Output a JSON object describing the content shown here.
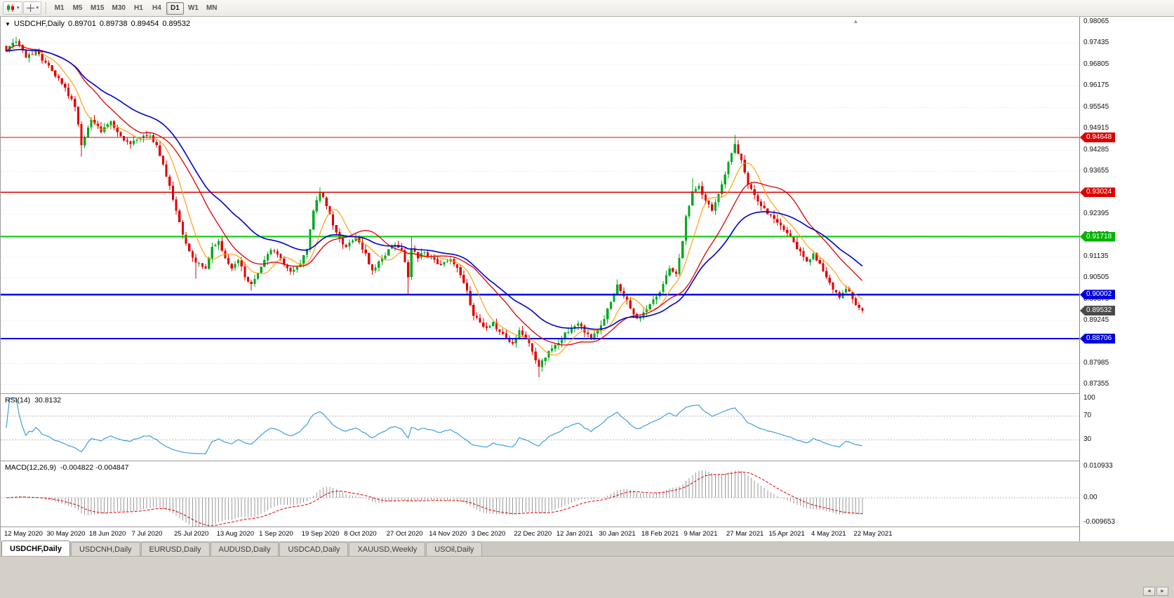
{
  "icons": {
    "caret": "▾",
    "symbol_caret": "▼",
    "shift_marker": "▲"
  },
  "toolbar": {
    "timeframes": [
      "M1",
      "M5",
      "M15",
      "M30",
      "H1",
      "H4",
      "D1",
      "W1",
      "MN"
    ],
    "active_timeframe": "D1"
  },
  "chart": {
    "header": {
      "symbol": "USDCHF,Daily",
      "open": "0.89701",
      "high": "0.89738",
      "low": "0.89454",
      "close": "0.89532"
    },
    "price_axis": {
      "ticks": [
        "0.98065",
        "0.97435",
        "0.96805",
        "0.96175",
        "0.95545",
        "0.94915",
        "0.94285",
        "0.93655",
        "0.93025",
        "0.92395",
        "0.91765",
        "0.91135",
        "0.90505",
        "0.89875",
        "0.89245",
        "0.88615",
        "0.87985",
        "0.87355"
      ],
      "badges": [
        {
          "text": "0.94648",
          "color": "#dd0000"
        },
        {
          "text": "0.93024",
          "color": "#dd0000"
        },
        {
          "text": "0.91718",
          "color": "#00b400"
        },
        {
          "text": "0.90002",
          "color": "#0000dd"
        },
        {
          "text": "0.88706",
          "color": "#0000dd"
        }
      ],
      "current_badge": {
        "text": "0.89532",
        "color": "#4a4a4a"
      }
    }
  },
  "chart_data": {
    "type": "candlestick",
    "symbol": "USDCHF",
    "timeframe": "Daily",
    "bars": 263,
    "label_step": 13,
    "price_axis_range": [
      0.8709,
      0.9821
    ],
    "date_labels": [
      "12 May 2020",
      "30 May 2020",
      "18 Jun 2020",
      "7 Jul 2020",
      "25 Jul 2020",
      "13 Aug 2020",
      "1 Sep 2020",
      "19 Sep 2020",
      "8 Oct 2020",
      "27 Oct 2020",
      "14 Nov 2020",
      "3 Dec 2020",
      "22 Dec 2020",
      "12 Jan 2021",
      "30 Jan 2021",
      "18 Feb 2021",
      "9 Mar 2021",
      "27 Mar 2021",
      "15 Apr 2021",
      "4 May 2021",
      "22 May 2021"
    ],
    "candle_colors": {
      "up": "#00a81e",
      "down": "#e00000"
    },
    "horizontal_levels": [
      {
        "price": 0.94648,
        "color": "#dd0000",
        "width": 1.4
      },
      {
        "price": 0.93024,
        "color": "#dd0000",
        "width": 1.4
      },
      {
        "price": 0.91718,
        "color": "#00c800",
        "width": 1.8
      },
      {
        "price": 0.90002,
        "color": "#0000e0",
        "width": 2.4
      },
      {
        "price": 0.88706,
        "color": "#0000e0",
        "width": 1.8
      }
    ],
    "moving_averages": [
      {
        "kind": "sma",
        "period": 8,
        "color": "#ff9900",
        "width": 1.1
      },
      {
        "kind": "sma",
        "period": 20,
        "color": "#dd0000",
        "width": 1.3
      },
      {
        "kind": "ema",
        "period": 34,
        "color": "#0000cc",
        "width": 1.6
      }
    ],
    "anchors": [
      [
        0,
        0.972
      ],
      [
        3,
        0.9748,
        null,
        0.9762
      ],
      [
        6,
        0.9701
      ],
      [
        9,
        0.9722
      ],
      [
        12,
        0.9685
      ],
      [
        15,
        0.9645
      ],
      [
        18,
        0.9612
      ],
      [
        21,
        0.9555
      ],
      [
        23,
        0.9442,
        0.9408,
        null
      ],
      [
        26,
        0.9518
      ],
      [
        29,
        0.948
      ],
      [
        32,
        0.9512
      ],
      [
        35,
        0.9468
      ],
      [
        38,
        0.9445
      ],
      [
        41,
        0.9462
      ],
      [
        44,
        0.947
      ],
      [
        46,
        0.9442
      ],
      [
        48,
        0.9385
      ],
      [
        50,
        0.9322
      ],
      [
        52,
        0.9248
      ],
      [
        54,
        0.9178
      ],
      [
        56,
        0.9128
      ],
      [
        58,
        0.9095,
        0.9048,
        null
      ],
      [
        61,
        0.9078
      ],
      [
        63,
        0.9142
      ],
      [
        65,
        0.9158
      ],
      [
        67,
        0.9108
      ],
      [
        69,
        0.9078
      ],
      [
        71,
        0.9102
      ],
      [
        73,
        0.9052
      ],
      [
        75,
        0.9032,
        0.9012,
        null
      ],
      [
        77,
        0.9065
      ],
      [
        79,
        0.9102
      ],
      [
        81,
        0.9132
      ],
      [
        84,
        0.9108
      ],
      [
        87,
        0.9068
      ],
      [
        90,
        0.9092
      ],
      [
        92,
        0.9135
      ],
      [
        94,
        0.9248
      ],
      [
        96,
        0.9302,
        null,
        0.9318
      ],
      [
        98,
        0.9262
      ],
      [
        100,
        0.9205
      ],
      [
        102,
        0.9168
      ],
      [
        104,
        0.9142
      ],
      [
        107,
        0.9168
      ],
      [
        110,
        0.9122
      ],
      [
        112,
        0.9072
      ],
      [
        115,
        0.9108
      ],
      [
        117,
        0.9135
      ],
      [
        119,
        0.9148
      ],
      [
        121,
        0.9132
      ],
      [
        123,
        0.9052,
        0.8998,
        null
      ],
      [
        124,
        0.9135,
        null,
        0.9172
      ],
      [
        126,
        0.9108
      ],
      [
        128,
        0.9125
      ],
      [
        130,
        0.9112
      ],
      [
        133,
        0.9088
      ],
      [
        136,
        0.9105
      ],
      [
        139,
        0.9058
      ],
      [
        141,
        0.9012
      ],
      [
        143,
        0.8938
      ],
      [
        145,
        0.8918
      ],
      [
        147,
        0.8902
      ],
      [
        149,
        0.892
      ],
      [
        151,
        0.889
      ],
      [
        153,
        0.887
      ],
      [
        155,
        0.8856
      ],
      [
        157,
        0.8895
      ],
      [
        159,
        0.8872
      ],
      [
        161,
        0.8832
      ],
      [
        163,
        0.8788,
        0.8757,
        null
      ],
      [
        165,
        0.8815
      ],
      [
        167,
        0.8842
      ],
      [
        169,
        0.8858
      ],
      [
        171,
        0.8888
      ],
      [
        173,
        0.8902
      ],
      [
        175,
        0.8915
      ],
      [
        177,
        0.8888
      ],
      [
        179,
        0.8868
      ],
      [
        181,
        0.8895
      ],
      [
        183,
        0.8928
      ],
      [
        185,
        0.8978
      ],
      [
        187,
        0.903,
        null,
        0.9046
      ],
      [
        189,
        0.8996
      ],
      [
        191,
        0.896
      ],
      [
        193,
        0.893
      ],
      [
        195,
        0.8948
      ],
      [
        197,
        0.8972
      ],
      [
        199,
        0.8995
      ],
      [
        201,
        0.9032
      ],
      [
        203,
        0.9078
      ],
      [
        205,
        0.9062
      ],
      [
        207,
        0.9158
      ],
      [
        208,
        0.9232
      ],
      [
        210,
        0.9305,
        null,
        0.9345
      ],
      [
        212,
        0.9322
      ],
      [
        214,
        0.9278
      ],
      [
        216,
        0.9248
      ],
      [
        218,
        0.9298
      ],
      [
        220,
        0.9355
      ],
      [
        222,
        0.9418
      ],
      [
        223,
        0.9445,
        null,
        0.9472
      ],
      [
        225,
        0.9398
      ],
      [
        227,
        0.9325
      ],
      [
        229,
        0.9295
      ],
      [
        231,
        0.9262
      ],
      [
        233,
        0.9238
      ],
      [
        235,
        0.9225
      ],
      [
        237,
        0.9205
      ],
      [
        239,
        0.9182
      ],
      [
        241,
        0.9155
      ],
      [
        243,
        0.9128
      ],
      [
        245,
        0.9098
      ],
      [
        247,
        0.9122
      ],
      [
        249,
        0.9092
      ],
      [
        251,
        0.9052
      ],
      [
        253,
        0.9015
      ],
      [
        255,
        0.8992
      ],
      [
        257,
        0.9018
      ],
      [
        259,
        0.8988
      ],
      [
        261,
        0.8962
      ],
      [
        262,
        0.89532,
        0.8946,
        null
      ]
    ]
  },
  "rsi": {
    "name": "RSI(14)",
    "value_text": "30.8132",
    "period": 14,
    "color": "#3f9fdc",
    "range": [
      -5,
      107
    ],
    "levels": [
      70,
      30
    ],
    "axis": [
      {
        "v": 100,
        "t": "100"
      },
      {
        "v": 70,
        "t": "70"
      },
      {
        "v": 30,
        "t": "30"
      }
    ]
  },
  "macd": {
    "name": "MACD(12,26,9)",
    "values_text": "-0.004822 -0.004847",
    "periods": [
      12,
      26,
      9
    ],
    "hist_color": "#9a9a9a",
    "signal_color": "#e00000",
    "range": [
      -0.0099,
      0.0125
    ],
    "axis": [
      {
        "v": 0.010933,
        "t": "0.010933"
      },
      {
        "v": 0,
        "t": "0.00"
      },
      {
        "v": -0.009653,
        "t": "-0.009653"
      }
    ]
  },
  "tabs": [
    {
      "label": "USDCHF,Daily",
      "active": true
    },
    {
      "label": "USDCNH,Daily",
      "active": false
    },
    {
      "label": "EURUSD,Daily",
      "active": false
    },
    {
      "label": "AUDUSD,Daily",
      "active": false
    },
    {
      "label": "USDCAD,Daily",
      "active": false
    },
    {
      "label": "XAUUSD,Weekly",
      "active": false
    },
    {
      "label": "USOil,Daily",
      "active": false
    }
  ],
  "bottom": {
    "scroll_left": "◄",
    "scroll_right": "►"
  }
}
